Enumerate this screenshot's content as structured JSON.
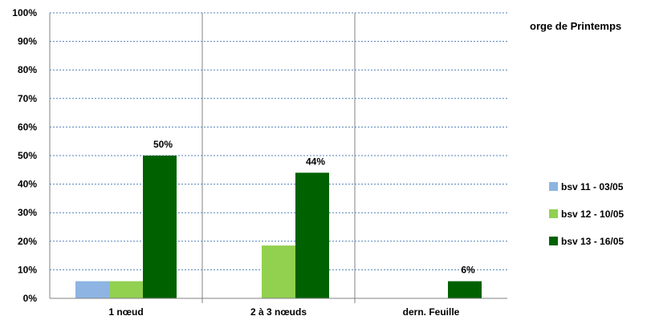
{
  "chart_data": {
    "type": "bar",
    "title": "",
    "side_title": "orge de Printemps",
    "xlabel": "",
    "ylabel": "",
    "ylim": [
      0,
      100
    ],
    "y_ticks": [
      "0%",
      "10%",
      "20%",
      "30%",
      "40%",
      "50%",
      "60%",
      "70%",
      "80%",
      "90%",
      "100%"
    ],
    "categories": [
      "1 nœud",
      "2 à 3 nœuds",
      "dern. Feuille"
    ],
    "series": [
      {
        "name": "bsv 11 - 03/05",
        "color": "#8db4e2",
        "values": [
          6,
          0,
          0
        ],
        "labels": [
          "",
          "",
          ""
        ]
      },
      {
        "name": "bsv 12 - 10/05",
        "color": "#92d050",
        "values": [
          6,
          18.5,
          0
        ],
        "labels": [
          "",
          "",
          ""
        ]
      },
      {
        "name": "bsv 13 - 16/05",
        "color": "#006100",
        "values": [
          50,
          44,
          6
        ],
        "labels": [
          "50%",
          "44%",
          "6%"
        ]
      }
    ],
    "grid": true,
    "legend_position": "right"
  }
}
